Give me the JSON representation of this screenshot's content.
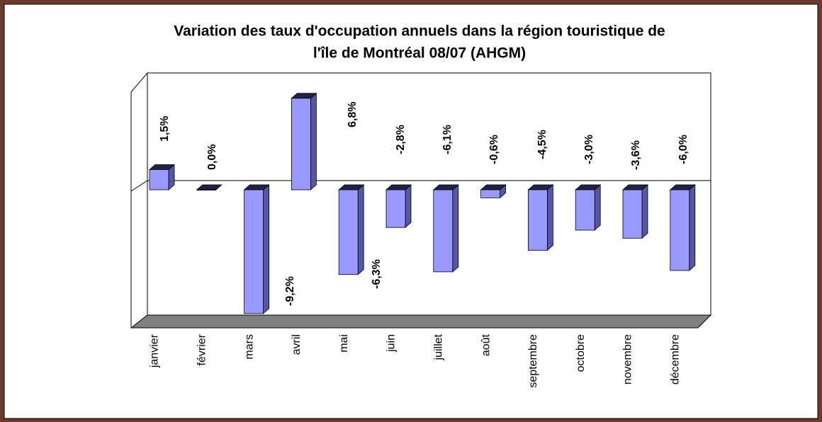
{
  "chart_data": {
    "type": "bar3d",
    "title": [
      "Variation des taux d'occupation annuels dans la région touristique de",
      "l'île de Montréal 08/07 (AHGM)"
    ],
    "categories": [
      "janvier",
      "février",
      "mars",
      "avril",
      "mai",
      "juin",
      "juillet",
      "août",
      "septembre",
      "octobre",
      "novembre",
      "décembre"
    ],
    "values": [
      1.5,
      0.0,
      -9.2,
      6.8,
      -6.3,
      -2.8,
      -6.1,
      -0.6,
      -4.5,
      -3.0,
      -3.6,
      -6.0
    ],
    "value_labels": [
      "1,5%",
      "0,0%",
      "-9,2%",
      "6,8%",
      "-6,3%",
      "-2,8%",
      "-6,1%",
      "-0,6%",
      "-4,5%",
      "-3,0%",
      "-3,6%",
      "-6,0%"
    ],
    "color": "#9999ff"
  }
}
